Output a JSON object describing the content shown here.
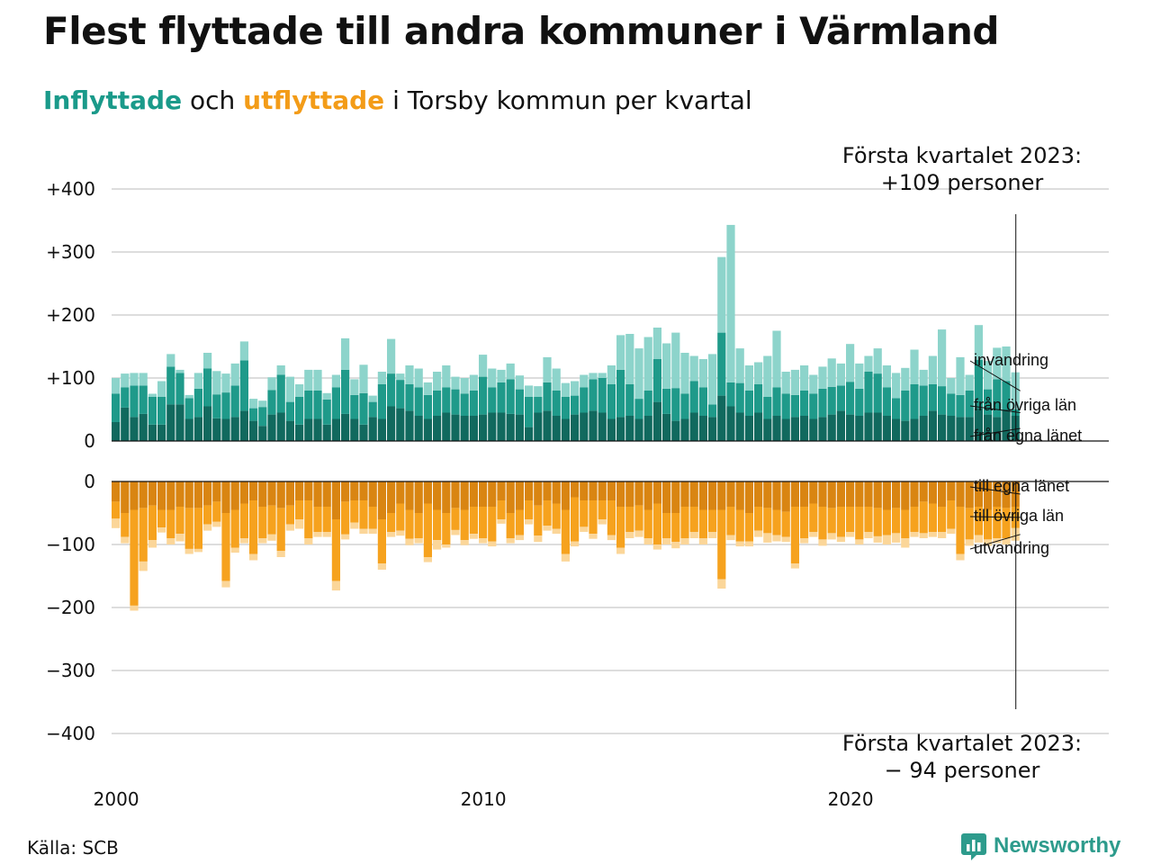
{
  "title": "Flest flyttade till andra kommuner i Värmland",
  "subtitle": {
    "part1": "Inflyttade",
    "part2": " och ",
    "part3": "utflyttade",
    "part4": " i Torsby kommun per kvartal"
  },
  "colors": {
    "in_egna": "#11695e",
    "in_ovriga": "#1f9a8a",
    "in_invandring": "#8dd4cb",
    "ut_egna": "#d98512",
    "ut_ovriga": "#f6a21e",
    "ut_utvandring": "#fbd699",
    "grid": "#dddddd",
    "text": "#111111"
  },
  "source": "Källa: SCB",
  "logo": {
    "text": "Newsworthy",
    "icon": "newsworthy-chart-icon"
  },
  "chart_data": {
    "type": "bar",
    "title": "Flest flyttade till andra kommuner i Värmland",
    "subtitle": "Inflyttade och utflyttade i Torsby kommun per kvartal",
    "ylim": [
      -400,
      400
    ],
    "yticks": [
      "+400",
      "+300",
      "+200",
      "+100",
      "0",
      "0",
      "−100",
      "−200",
      "−300",
      "−400"
    ],
    "xticks": [
      "2000",
      "2010",
      "2020"
    ],
    "x_start": "2000 Q1",
    "x_end": "2023 Q1",
    "series_labels": {
      "inflyttade": [
        "invandring",
        "från övriga län",
        "från egna länet"
      ],
      "utflyttade": [
        "till egna länet",
        "till övriga län",
        "utvandring"
      ]
    },
    "annotations": [
      {
        "text1": "Första kvartalet 2023:",
        "text2": "+109 personer"
      },
      {
        "text1": "Första kvartalet 2023:",
        "text2": "− 94 personer"
      }
    ],
    "inflyttade": {
      "fran_egna_lanet": [
        30,
        53,
        38,
        43,
        26,
        26,
        58,
        58,
        35,
        38,
        55,
        36,
        35,
        38,
        48,
        32,
        24,
        42,
        45,
        32,
        26,
        35,
        35,
        26,
        35,
        43,
        35,
        26,
        38,
        35,
        55,
        52,
        48,
        40,
        35,
        40,
        45,
        42,
        40,
        40,
        42,
        45,
        45,
        43,
        42,
        22,
        45,
        48,
        40,
        35,
        42,
        45,
        48,
        45,
        35,
        38,
        40,
        35,
        40,
        62,
        43,
        32,
        35,
        45,
        40,
        38,
        72,
        55,
        45,
        40,
        45,
        35,
        40,
        35,
        38,
        40,
        35,
        38,
        42,
        48,
        42,
        40,
        45,
        45,
        40,
        35,
        32,
        35,
        40,
        48,
        42,
        40,
        38,
        38,
        52,
        42,
        38,
        50,
        40
      ],
      "fran_ovriga_lan": [
        45,
        32,
        50,
        45,
        44,
        44,
        60,
        50,
        33,
        45,
        60,
        38,
        42,
        50,
        80,
        20,
        30,
        39,
        60,
        30,
        44,
        45,
        45,
        40,
        50,
        70,
        38,
        50,
        24,
        55,
        52,
        45,
        42,
        45,
        38,
        40,
        40,
        40,
        35,
        40,
        60,
        40,
        48,
        55,
        40,
        48,
        25,
        45,
        40,
        35,
        30,
        40,
        50,
        55,
        55,
        75,
        50,
        32,
        40,
        68,
        40,
        52,
        40,
        50,
        45,
        20,
        100,
        38,
        47,
        40,
        45,
        35,
        45,
        40,
        35,
        40,
        40,
        45,
        44,
        40,
        52,
        43,
        65,
        62,
        45,
        33,
        48,
        55,
        48,
        42,
        45,
        35,
        35,
        42,
        77,
        40,
        60,
        45,
        10
      ],
      "invandring": [
        25,
        22,
        20,
        20,
        5,
        25,
        20,
        5,
        5,
        25,
        25,
        37,
        30,
        35,
        30,
        15,
        10,
        20,
        15,
        40,
        20,
        33,
        33,
        10,
        20,
        50,
        25,
        45,
        10,
        20,
        55,
        10,
        30,
        30,
        20,
        30,
        35,
        20,
        25,
        25,
        35,
        30,
        20,
        25,
        22,
        18,
        17,
        40,
        35,
        22,
        23,
        20,
        10,
        8,
        30,
        55,
        80,
        80,
        85,
        50,
        72,
        88,
        65,
        40,
        45,
        80,
        120,
        250,
        55,
        40,
        35,
        65,
        90,
        35,
        40,
        40,
        30,
        35,
        45,
        35,
        60,
        40,
        25,
        40,
        35,
        40,
        36,
        55,
        25,
        45,
        90,
        25,
        60,
        25,
        55,
        45,
        50,
        55,
        59
      ]
    },
    "utflyttade": {
      "till_egna_lanet": [
        32,
        50,
        45,
        42,
        38,
        45,
        45,
        40,
        42,
        42,
        38,
        32,
        50,
        45,
        35,
        30,
        40,
        38,
        42,
        38,
        30,
        30,
        40,
        40,
        60,
        32,
        30,
        30,
        40,
        60,
        50,
        35,
        45,
        50,
        35,
        45,
        50,
        42,
        45,
        40,
        40,
        40,
        30,
        50,
        45,
        30,
        38,
        30,
        35,
        45,
        25,
        30,
        30,
        30,
        30,
        40,
        40,
        38,
        45,
        35,
        50,
        50,
        40,
        40,
        45,
        45,
        45,
        40,
        45,
        50,
        40,
        42,
        45,
        48,
        40,
        40,
        35,
        40,
        42,
        40,
        40,
        40,
        40,
        42,
        45,
        42,
        45,
        40,
        32,
        35,
        40,
        30,
        40,
        42,
        40,
        45,
        40,
        42,
        40
      ],
      "till_ovriga_lan": [
        27,
        38,
        152,
        85,
        55,
        28,
        45,
        43,
        65,
        65,
        30,
        32,
        108,
        60,
        55,
        85,
        50,
        46,
        68,
        30,
        30,
        60,
        40,
        40,
        98,
        52,
        35,
        45,
        35,
        70,
        30,
        43,
        46,
        40,
        85,
        48,
        50,
        35,
        48,
        43,
        50,
        55,
        30,
        40,
        40,
        30,
        48,
        40,
        40,
        70,
        70,
        42,
        53,
        30,
        55,
        65,
        40,
        40,
        45,
        65,
        40,
        46,
        50,
        40,
        45,
        35,
        110,
        45,
        50,
        45,
        38,
        40,
        40,
        40,
        90,
        50,
        45,
        52,
        40,
        48,
        40,
        52,
        40,
        45,
        40,
        40,
        45,
        40,
        50,
        45,
        40,
        45,
        75,
        50,
        45,
        47,
        50,
        48,
        34
      ],
      "utvandring": [
        15,
        10,
        8,
        15,
        12,
        8,
        10,
        12,
        8,
        5,
        10,
        8,
        10,
        8,
        8,
        10,
        8,
        10,
        10,
        10,
        15,
        10,
        8,
        8,
        15,
        8,
        10,
        8,
        8,
        10,
        8,
        8,
        10,
        8,
        8,
        15,
        5,
        8,
        8,
        8,
        8,
        8,
        7,
        8,
        8,
        8,
        10,
        8,
        8,
        12,
        8,
        8,
        8,
        8,
        8,
        10,
        10,
        10,
        10,
        8,
        10,
        10,
        10,
        10,
        10,
        10,
        15,
        8,
        8,
        8,
        10,
        15,
        10,
        8,
        8,
        8,
        8,
        10,
        10,
        8,
        8,
        8,
        10,
        10,
        15,
        15,
        15,
        8,
        8,
        8,
        10,
        8,
        10,
        10,
        12,
        10,
        8,
        10,
        20
      ]
    }
  }
}
